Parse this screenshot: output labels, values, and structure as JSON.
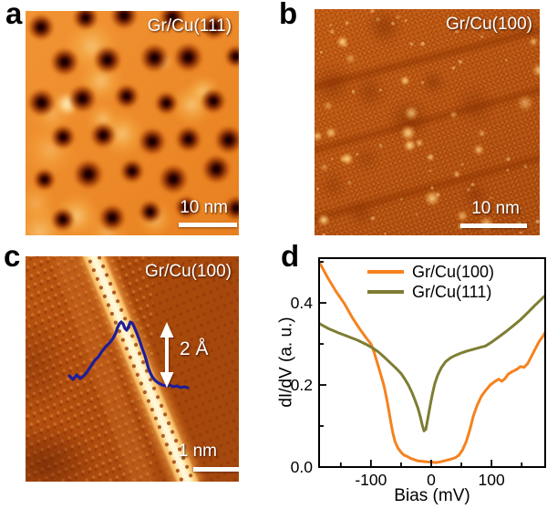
{
  "figure": {
    "background": "#ffffff"
  },
  "panels": {
    "a": {
      "label": "a",
      "annotation": "Gr/Cu(111)",
      "scalebar_text": "10 nm"
    },
    "b": {
      "label": "b",
      "annotation": "Gr/Cu(100)",
      "scalebar_text": "10 nm"
    },
    "c": {
      "label": "c",
      "annotation": "Gr/Cu(100)",
      "scalebar_text": "1 nm",
      "height_label": "2 Å",
      "profile_color": "#1d1d99",
      "profile_points": [
        [
          48,
          131
        ],
        [
          52,
          135
        ],
        [
          56,
          130
        ],
        [
          60,
          134
        ],
        [
          64,
          131
        ],
        [
          68,
          126
        ],
        [
          72,
          120
        ],
        [
          76,
          114
        ],
        [
          80,
          110
        ],
        [
          84,
          104
        ],
        [
          88,
          99
        ],
        [
          92,
          95
        ],
        [
          96,
          90
        ],
        [
          99,
          84
        ],
        [
          101,
          78
        ],
        [
          103,
          74
        ],
        [
          105,
          72
        ],
        [
          107,
          74
        ],
        [
          109,
          79
        ],
        [
          111,
          81
        ],
        [
          113,
          77
        ],
        [
          115,
          72
        ],
        [
          117,
          73
        ],
        [
          119,
          77
        ],
        [
          122,
          84
        ],
        [
          125,
          92
        ],
        [
          128,
          101
        ],
        [
          131,
          109
        ],
        [
          133,
          116
        ],
        [
          135,
          123
        ],
        [
          137,
          128
        ],
        [
          139,
          132
        ],
        [
          142,
          136
        ],
        [
          146,
          139
        ],
        [
          150,
          141
        ],
        [
          154,
          142
        ],
        [
          158,
          141
        ],
        [
          162,
          143
        ],
        [
          166,
          142
        ],
        [
          170,
          144
        ],
        [
          174,
          143
        ],
        [
          178,
          144
        ]
      ]
    },
    "d": {
      "label": "d"
    }
  },
  "chart_data": {
    "type": "line",
    "title": "",
    "xlabel": "Bias (mV)",
    "ylabel": "dI/dV (a. u.)",
    "xlim": [
      -186,
      189
    ],
    "ylim": [
      0,
      0.509
    ],
    "grid": false,
    "legend_position": "top-left-inside",
    "x_ticks_major": {
      "values": [
        -100,
        0,
        100
      ],
      "labels": [
        "-100",
        "0",
        "100"
      ]
    },
    "x_ticks_minor": [
      -150,
      -50,
      50,
      150
    ],
    "y_ticks_major": {
      "values": [
        0,
        0.2,
        0.4
      ],
      "labels": [
        "0.0",
        "0.2",
        "0.4"
      ]
    },
    "y_ticks_minor": [
      0.1,
      0.3,
      0.5
    ],
    "series": [
      {
        "name": "Gr/Cu(100)",
        "color": "#f5821f",
        "points": [
          [
            -186,
            0.5
          ],
          [
            -172,
            0.462
          ],
          [
            -158,
            0.428
          ],
          [
            -144,
            0.398
          ],
          [
            -130,
            0.362
          ],
          [
            -118,
            0.335
          ],
          [
            -108,
            0.315
          ],
          [
            -100,
            0.3
          ],
          [
            -94,
            0.277
          ],
          [
            -88,
            0.247
          ],
          [
            -83,
            0.222
          ],
          [
            -78,
            0.196
          ],
          [
            -73,
            0.16
          ],
          [
            -68,
            0.118
          ],
          [
            -64,
            0.085
          ],
          [
            -60,
            0.062
          ],
          [
            -55,
            0.046
          ],
          [
            -50,
            0.036
          ],
          [
            -45,
            0.029
          ],
          [
            -40,
            0.026
          ],
          [
            -34,
            0.021
          ],
          [
            -28,
            0.018
          ],
          [
            -22,
            0.015
          ],
          [
            -15,
            0.014
          ],
          [
            -8,
            0.013
          ],
          [
            0,
            0.012
          ],
          [
            8,
            0.011
          ],
          [
            16,
            0.013
          ],
          [
            24,
            0.016
          ],
          [
            32,
            0.019
          ],
          [
            40,
            0.023
          ],
          [
            46,
            0.029
          ],
          [
            52,
            0.042
          ],
          [
            58,
            0.062
          ],
          [
            64,
            0.09
          ],
          [
            70,
            0.125
          ],
          [
            76,
            0.15
          ],
          [
            83,
            0.172
          ],
          [
            90,
            0.186
          ],
          [
            98,
            0.2
          ],
          [
            106,
            0.209
          ],
          [
            112,
            0.214
          ],
          [
            117,
            0.209
          ],
          [
            122,
            0.215
          ],
          [
            128,
            0.227
          ],
          [
            135,
            0.233
          ],
          [
            142,
            0.238
          ],
          [
            148,
            0.245
          ],
          [
            154,
            0.243
          ],
          [
            160,
            0.252
          ],
          [
            167,
            0.272
          ],
          [
            174,
            0.292
          ],
          [
            180,
            0.308
          ],
          [
            185,
            0.318
          ],
          [
            189,
            0.328
          ]
        ]
      },
      {
        "name": "Gr/Cu(111)",
        "color": "#7e7d33",
        "points": [
          [
            -186,
            0.35
          ],
          [
            -170,
            0.337
          ],
          [
            -154,
            0.327
          ],
          [
            -138,
            0.318
          ],
          [
            -122,
            0.309
          ],
          [
            -108,
            0.299
          ],
          [
            -98,
            0.291
          ],
          [
            -88,
            0.281
          ],
          [
            -78,
            0.268
          ],
          [
            -68,
            0.254
          ],
          [
            -58,
            0.24
          ],
          [
            -50,
            0.228
          ],
          [
            -44,
            0.215
          ],
          [
            -38,
            0.2
          ],
          [
            -32,
            0.182
          ],
          [
            -27,
            0.163
          ],
          [
            -22,
            0.143
          ],
          [
            -18,
            0.122
          ],
          [
            -15,
            0.103
          ],
          [
            -12,
            0.088
          ],
          [
            -9,
            0.092
          ],
          [
            -6,
            0.115
          ],
          [
            -2,
            0.148
          ],
          [
            2,
            0.178
          ],
          [
            6,
            0.204
          ],
          [
            11,
            0.225
          ],
          [
            17,
            0.243
          ],
          [
            24,
            0.257
          ],
          [
            32,
            0.266
          ],
          [
            40,
            0.272
          ],
          [
            50,
            0.278
          ],
          [
            60,
            0.283
          ],
          [
            70,
            0.287
          ],
          [
            80,
            0.291
          ],
          [
            90,
            0.295
          ],
          [
            100,
            0.304
          ],
          [
            112,
            0.317
          ],
          [
            124,
            0.33
          ],
          [
            136,
            0.344
          ],
          [
            148,
            0.359
          ],
          [
            160,
            0.376
          ],
          [
            172,
            0.394
          ],
          [
            182,
            0.408
          ],
          [
            189,
            0.418
          ]
        ]
      }
    ]
  }
}
